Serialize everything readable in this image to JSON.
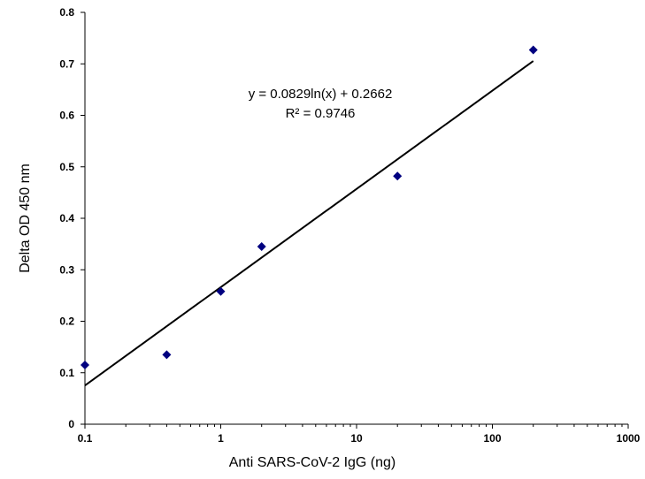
{
  "chart_data": {
    "type": "scatter",
    "title": "",
    "xlabel": "Anti SARS-CoV-2 IgG (ng)",
    "ylabel": "Delta OD 450 nm",
    "x_scale": "log",
    "xlim": [
      0.1,
      1000
    ],
    "ylim": [
      0,
      0.8
    ],
    "x_ticks": [
      "0.1",
      "1",
      "10",
      "100",
      "1000"
    ],
    "y_ticks": [
      "0",
      "0.1",
      "0.2",
      "0.3",
      "0.4",
      "0.5",
      "0.6",
      "0.7",
      "0.8"
    ],
    "grid": false,
    "legend": "none",
    "series": [
      {
        "marker": "diamond",
        "color": "#000080",
        "points": [
          {
            "x": 0.1,
            "y": 0.115
          },
          {
            "x": 0.4,
            "y": 0.135
          },
          {
            "x": 1,
            "y": 0.258
          },
          {
            "x": 2,
            "y": 0.345
          },
          {
            "x": 20,
            "y": 0.482
          },
          {
            "x": 200,
            "y": 0.727
          }
        ]
      }
    ],
    "trendline": {
      "type": "logarithmic",
      "slope": 0.0829,
      "intercept": 0.2662,
      "x_range": [
        0.1,
        200
      ],
      "color": "#000000"
    },
    "annotations": {
      "equation": "y = 0.0829ln(x) + 0.2662",
      "r_squared": "R² = 0.9746"
    }
  }
}
